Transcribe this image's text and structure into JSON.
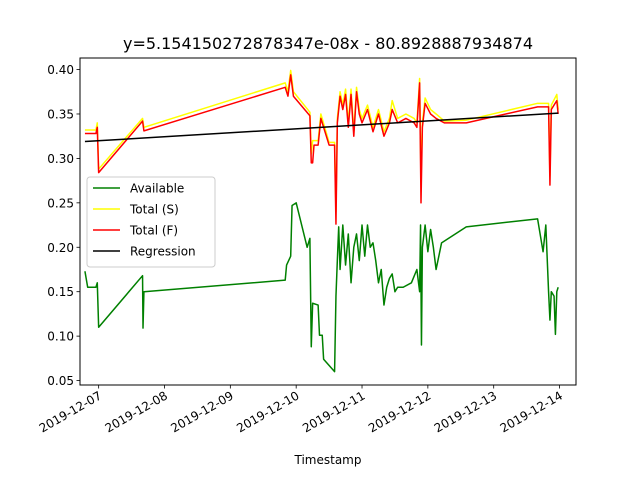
{
  "chart_data": {
    "type": "line",
    "title": "y=5.154150272878347e-08x - 80.8928887934874",
    "xlabel": "Timestamp",
    "ylabel": "",
    "x_tick_labels": [
      "2019-12-07",
      "2019-12-08",
      "2019-12-09",
      "2019-12-10",
      "2019-12-11",
      "2019-12-12",
      "2019-12-13",
      "2019-12-14"
    ],
    "y_tick_labels": [
      "0.05",
      "0.10",
      "0.15",
      "0.20",
      "0.25",
      "0.30",
      "0.35",
      "0.40"
    ],
    "ylim": [
      0.045,
      0.413
    ],
    "xlim": [
      "2019-12-06T17:12",
      "2019-12-14T06:00"
    ],
    "legend_position": "center-left",
    "grid": false,
    "series": [
      {
        "name": "Available",
        "color": "#008000",
        "points": [
          [
            "2019-12-06T19:00",
            0.173
          ],
          [
            "2019-12-06T20:00",
            0.155
          ],
          [
            "2019-12-06T23:00",
            0.155
          ],
          [
            "2019-12-06T23:30",
            0.16
          ],
          [
            "2019-12-07T00:00",
            0.11
          ],
          [
            "2019-12-07T16:00",
            0.168
          ],
          [
            "2019-12-07T16:10",
            0.109
          ],
          [
            "2019-12-07T16:30",
            0.15
          ],
          [
            "2019-12-09T20:00",
            0.163
          ],
          [
            "2019-12-09T20:30",
            0.18
          ],
          [
            "2019-12-09T22:00",
            0.19
          ],
          [
            "2019-12-09T22:30",
            0.247
          ],
          [
            "2019-12-10T00:00",
            0.25
          ],
          [
            "2019-12-10T04:00",
            0.2
          ],
          [
            "2019-12-10T05:00",
            0.21
          ],
          [
            "2019-12-10T05:30",
            0.088
          ],
          [
            "2019-12-10T06:00",
            0.137
          ],
          [
            "2019-12-10T08:00",
            0.135
          ],
          [
            "2019-12-10T08:30",
            0.101
          ],
          [
            "2019-12-10T09:30",
            0.101
          ],
          [
            "2019-12-10T10:00",
            0.074
          ],
          [
            "2019-12-10T14:00",
            0.06
          ],
          [
            "2019-12-10T14:30",
            0.145
          ],
          [
            "2019-12-10T15:00",
            0.185
          ],
          [
            "2019-12-10T15:30",
            0.223
          ],
          [
            "2019-12-10T16:00",
            0.175
          ],
          [
            "2019-12-10T17:00",
            0.225
          ],
          [
            "2019-12-10T18:00",
            0.18
          ],
          [
            "2019-12-10T19:00",
            0.215
          ],
          [
            "2019-12-10T20:00",
            0.16
          ],
          [
            "2019-12-10T21:00",
            0.2
          ],
          [
            "2019-12-10T22:00",
            0.215
          ],
          [
            "2019-12-10T23:00",
            0.185
          ],
          [
            "2019-12-11T00:00",
            0.225
          ],
          [
            "2019-12-11T01:00",
            0.19
          ],
          [
            "2019-12-11T02:00",
            0.225
          ],
          [
            "2019-12-11T03:00",
            0.2
          ],
          [
            "2019-12-11T04:00",
            0.205
          ],
          [
            "2019-12-11T05:00",
            0.185
          ],
          [
            "2019-12-11T06:00",
            0.16
          ],
          [
            "2019-12-11T07:00",
            0.175
          ],
          [
            "2019-12-11T08:00",
            0.135
          ],
          [
            "2019-12-11T09:00",
            0.155
          ],
          [
            "2019-12-11T10:00",
            0.165
          ],
          [
            "2019-12-11T11:00",
            0.17
          ],
          [
            "2019-12-11T12:00",
            0.15
          ],
          [
            "2019-12-11T13:00",
            0.155
          ],
          [
            "2019-12-11T15:00",
            0.155
          ],
          [
            "2019-12-11T18:00",
            0.16
          ],
          [
            "2019-12-11T20:00",
            0.175
          ],
          [
            "2019-12-11T21:00",
            0.15
          ],
          [
            "2019-12-11T21:20",
            0.225
          ],
          [
            "2019-12-11T21:40",
            0.09
          ],
          [
            "2019-12-11T22:00",
            0.2
          ],
          [
            "2019-12-11T23:00",
            0.225
          ],
          [
            "2019-12-12T00:00",
            0.195
          ],
          [
            "2019-12-12T01:00",
            0.22
          ],
          [
            "2019-12-12T02:00",
            0.2
          ],
          [
            "2019-12-12T03:00",
            0.175
          ],
          [
            "2019-12-12T05:00",
            0.205
          ],
          [
            "2019-12-12T14:00",
            0.223
          ],
          [
            "2019-12-13T16:00",
            0.232
          ],
          [
            "2019-12-13T18:00",
            0.195
          ],
          [
            "2019-12-13T19:00",
            0.225
          ],
          [
            "2019-12-13T20:00",
            0.15
          ],
          [
            "2019-12-13T20:30",
            0.118
          ],
          [
            "2019-12-13T21:00",
            0.15
          ],
          [
            "2019-12-13T22:00",
            0.145
          ],
          [
            "2019-12-13T22:30",
            0.102
          ],
          [
            "2019-12-13T23:00",
            0.15
          ],
          [
            "2019-12-13T23:30",
            0.155
          ]
        ]
      },
      {
        "name": "Total (S)",
        "color": "#ffff00",
        "points": [
          [
            "2019-12-06T19:00",
            0.332
          ],
          [
            "2019-12-06T23:00",
            0.332
          ],
          [
            "2019-12-06T23:30",
            0.34
          ],
          [
            "2019-12-07T00:00",
            0.288
          ],
          [
            "2019-12-07T16:00",
            0.345
          ],
          [
            "2019-12-07T16:30",
            0.335
          ],
          [
            "2019-12-09T20:00",
            0.385
          ],
          [
            "2019-12-09T21:00",
            0.375
          ],
          [
            "2019-12-09T22:00",
            0.399
          ],
          [
            "2019-12-09T23:00",
            0.375
          ],
          [
            "2019-12-10T05:00",
            0.352
          ],
          [
            "2019-12-10T05:30",
            0.305
          ],
          [
            "2019-12-10T06:00",
            0.32
          ],
          [
            "2019-12-10T08:00",
            0.32
          ],
          [
            "2019-12-10T09:00",
            0.35
          ],
          [
            "2019-12-10T12:00",
            0.318
          ],
          [
            "2019-12-10T14:00",
            0.318
          ],
          [
            "2019-12-10T14:30",
            0.24
          ],
          [
            "2019-12-10T15:00",
            0.345
          ],
          [
            "2019-12-10T16:00",
            0.375
          ],
          [
            "2019-12-10T17:00",
            0.36
          ],
          [
            "2019-12-10T18:00",
            0.378
          ],
          [
            "2019-12-10T19:00",
            0.34
          ],
          [
            "2019-12-10T20:00",
            0.378
          ],
          [
            "2019-12-10T21:00",
            0.33
          ],
          [
            "2019-12-10T22:00",
            0.38
          ],
          [
            "2019-12-10T23:00",
            0.355
          ],
          [
            "2019-12-11T00:00",
            0.345
          ],
          [
            "2019-12-11T02:00",
            0.36
          ],
          [
            "2019-12-11T04:00",
            0.335
          ],
          [
            "2019-12-11T06:00",
            0.355
          ],
          [
            "2019-12-11T08:00",
            0.33
          ],
          [
            "2019-12-11T10:00",
            0.345
          ],
          [
            "2019-12-11T11:00",
            0.365
          ],
          [
            "2019-12-11T13:00",
            0.345
          ],
          [
            "2019-12-11T16:00",
            0.35
          ],
          [
            "2019-12-11T19:00",
            0.345
          ],
          [
            "2019-12-11T20:00",
            0.34
          ],
          [
            "2019-12-11T21:00",
            0.39
          ],
          [
            "2019-12-11T21:30",
            0.275
          ],
          [
            "2019-12-11T22:00",
            0.34
          ],
          [
            "2019-12-11T23:00",
            0.368
          ],
          [
            "2019-12-12T01:00",
            0.355
          ],
          [
            "2019-12-12T03:00",
            0.35
          ],
          [
            "2019-12-12T06:00",
            0.342
          ],
          [
            "2019-12-12T14:00",
            0.343
          ],
          [
            "2019-12-13T16:00",
            0.362
          ],
          [
            "2019-12-13T20:00",
            0.362
          ],
          [
            "2019-12-13T20:30",
            0.28
          ],
          [
            "2019-12-13T21:00",
            0.36
          ],
          [
            "2019-12-13T23:00",
            0.372
          ],
          [
            "2019-12-13T23:30",
            0.355
          ]
        ]
      },
      {
        "name": "Total (F)",
        "color": "#ff0000",
        "points": [
          [
            "2019-12-06T19:00",
            0.328
          ],
          [
            "2019-12-06T23:00",
            0.328
          ],
          [
            "2019-12-06T23:30",
            0.335
          ],
          [
            "2019-12-07T00:00",
            0.284
          ],
          [
            "2019-12-07T16:00",
            0.342
          ],
          [
            "2019-12-07T16:30",
            0.331
          ],
          [
            "2019-12-09T20:00",
            0.38
          ],
          [
            "2019-12-09T21:00",
            0.37
          ],
          [
            "2019-12-09T22:00",
            0.394
          ],
          [
            "2019-12-09T23:00",
            0.37
          ],
          [
            "2019-12-10T05:00",
            0.348
          ],
          [
            "2019-12-10T05:30",
            0.295
          ],
          [
            "2019-12-10T06:00",
            0.295
          ],
          [
            "2019-12-10T06:30",
            0.315
          ],
          [
            "2019-12-10T08:00",
            0.315
          ],
          [
            "2019-12-10T09:00",
            0.345
          ],
          [
            "2019-12-10T12:00",
            0.315
          ],
          [
            "2019-12-10T14:00",
            0.315
          ],
          [
            "2019-12-10T14:30",
            0.226
          ],
          [
            "2019-12-10T15:00",
            0.34
          ],
          [
            "2019-12-10T16:00",
            0.37
          ],
          [
            "2019-12-10T17:00",
            0.355
          ],
          [
            "2019-12-10T18:00",
            0.372
          ],
          [
            "2019-12-10T19:00",
            0.335
          ],
          [
            "2019-12-10T20:00",
            0.372
          ],
          [
            "2019-12-10T21:00",
            0.325
          ],
          [
            "2019-12-10T22:00",
            0.375
          ],
          [
            "2019-12-10T23:00",
            0.35
          ],
          [
            "2019-12-11T00:00",
            0.34
          ],
          [
            "2019-12-11T02:00",
            0.355
          ],
          [
            "2019-12-11T04:00",
            0.33
          ],
          [
            "2019-12-11T06:00",
            0.35
          ],
          [
            "2019-12-11T08:00",
            0.325
          ],
          [
            "2019-12-11T10:00",
            0.34
          ],
          [
            "2019-12-11T11:00",
            0.355
          ],
          [
            "2019-12-11T13:00",
            0.34
          ],
          [
            "2019-12-11T16:00",
            0.345
          ],
          [
            "2019-12-11T19:00",
            0.34
          ],
          [
            "2019-12-11T20:00",
            0.335
          ],
          [
            "2019-12-11T21:00",
            0.385
          ],
          [
            "2019-12-11T21:30",
            0.25
          ],
          [
            "2019-12-11T22:00",
            0.335
          ],
          [
            "2019-12-11T23:00",
            0.362
          ],
          [
            "2019-12-12T01:00",
            0.35
          ],
          [
            "2019-12-12T03:00",
            0.345
          ],
          [
            "2019-12-12T06:00",
            0.34
          ],
          [
            "2019-12-12T14:00",
            0.34
          ],
          [
            "2019-12-13T16:00",
            0.358
          ],
          [
            "2019-12-13T20:00",
            0.358
          ],
          [
            "2019-12-13T20:30",
            0.27
          ],
          [
            "2019-12-13T21:00",
            0.355
          ],
          [
            "2019-12-13T23:00",
            0.365
          ],
          [
            "2019-12-13T23:30",
            0.35
          ]
        ]
      },
      {
        "name": "Regression",
        "color": "#000000",
        "points": [
          [
            "2019-12-06T19:00",
            0.319
          ],
          [
            "2019-12-13T23:30",
            0.351
          ]
        ]
      }
    ]
  }
}
